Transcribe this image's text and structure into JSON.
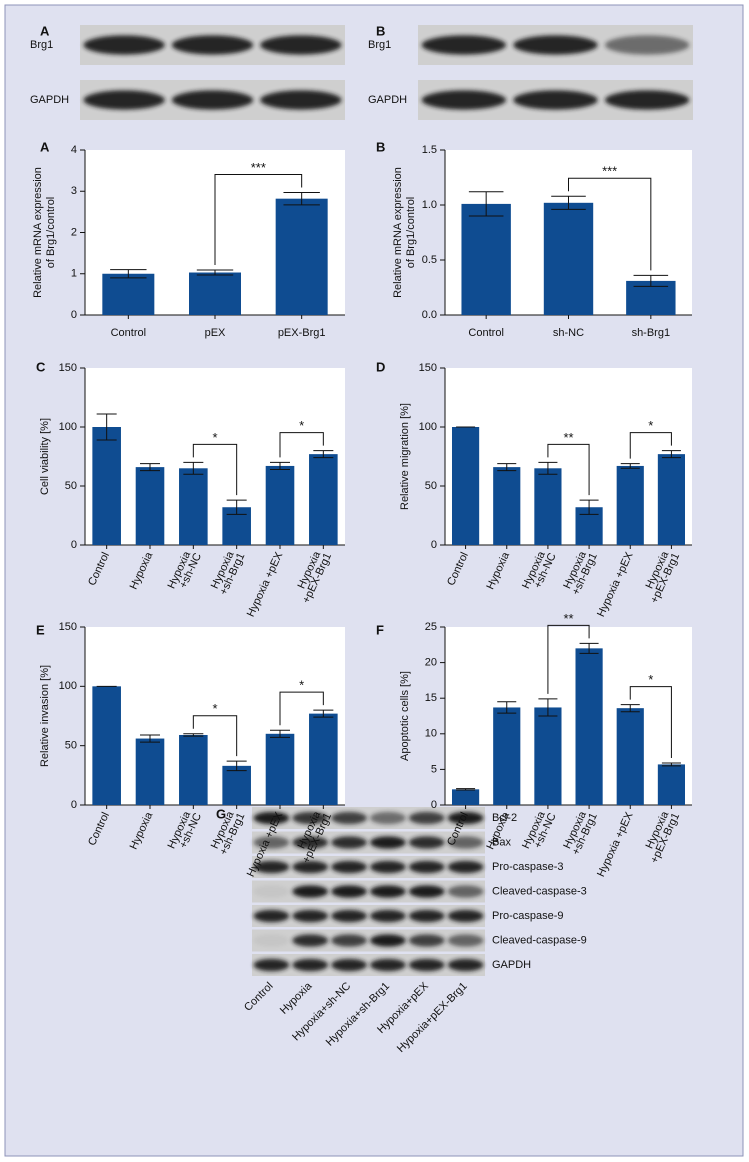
{
  "chart_data": [
    {
      "type": "bar",
      "panel": "A",
      "ylabel": [
        "Relative mRNA expression",
        "of Brg1/control"
      ],
      "categories": [
        [
          "Control"
        ],
        [
          "pEX"
        ],
        [
          "pEX-Brg1"
        ]
      ],
      "values": [
        1.0,
        1.03,
        2.82
      ],
      "errors": [
        0.1,
        0.06,
        0.15
      ],
      "color": "#0f4c91",
      "ylim": [
        0,
        4
      ],
      "yticks": [
        0,
        1,
        2,
        3,
        4
      ],
      "significance": [
        {
          "label": "***",
          "from": 1,
          "to": 2
        }
      ]
    },
    {
      "type": "bar",
      "panel": "B",
      "ylabel": [
        "Relative mRNA expression",
        "of Brg1/control"
      ],
      "categories": [
        [
          "Control"
        ],
        [
          "sh-NC"
        ],
        [
          "sh-Brg1"
        ]
      ],
      "values": [
        1.01,
        1.02,
        0.31
      ],
      "errors": [
        0.11,
        0.06,
        0.05
      ],
      "color": "#0f4c91",
      "ylim": [
        0,
        1.5
      ],
      "yticks": [
        {
          "value": 0,
          "label": "0.0"
        },
        0.5,
        {
          "value": 1,
          "label": "1.0"
        },
        1.5
      ],
      "significance": [
        {
          "label": "***",
          "from": 1,
          "to": 2
        }
      ]
    },
    {
      "type": "bar",
      "panel": "C",
      "ylabel": [
        "Cell viability [%]"
      ],
      "categories": [
        [
          "Control"
        ],
        [
          "Hypoxia"
        ],
        [
          "Hypoxia",
          "+sh-NC"
        ],
        [
          "Hypoxia",
          "+sh-Brg1"
        ],
        [
          "Hypoxia +pEX"
        ],
        [
          "Hypoxia",
          "+pEX-Brg1"
        ]
      ],
      "values": [
        100,
        66,
        65,
        32,
        67,
        77
      ],
      "errors": [
        11,
        3,
        5,
        6,
        3,
        3
      ],
      "color": "#0f4c91",
      "ylim": [
        0,
        150
      ],
      "yticks": [
        0,
        50,
        100,
        150
      ],
      "significance": [
        {
          "label": "*",
          "from": 2,
          "to": 3
        },
        {
          "label": "*",
          "from": 4,
          "to": 5
        }
      ]
    },
    {
      "type": "bar",
      "panel": "D",
      "ylabel": [
        "Relative migration [%]"
      ],
      "categories": [
        [
          "Control"
        ],
        [
          "Hypoxia"
        ],
        [
          "Hypoxia",
          "+sh-NC"
        ],
        [
          "Hypoxia",
          "+sh-Brg1"
        ],
        [
          "Hypoxia +pEX"
        ],
        [
          "Hypoxia",
          "+pEX-Brg1"
        ]
      ],
      "values": [
        100,
        66,
        65,
        32,
        67,
        77
      ],
      "errors": [
        0,
        3,
        5,
        6,
        2,
        3
      ],
      "color": "#0f4c91",
      "ylim": [
        0,
        150
      ],
      "yticks": [
        0,
        50,
        100,
        150
      ],
      "significance": [
        {
          "label": "**",
          "from": 2,
          "to": 3
        },
        {
          "label": "*",
          "from": 4,
          "to": 5
        }
      ]
    },
    {
      "type": "bar",
      "panel": "E",
      "ylabel": [
        "Relative invasion [%]"
      ],
      "categories": [
        [
          "Control"
        ],
        [
          "Hypoxia"
        ],
        [
          "Hypoxia",
          "+sh-NC"
        ],
        [
          "Hypoxia",
          "+sh-Brg1"
        ],
        [
          "Hypoxia +pEX"
        ],
        [
          "Hypoxia",
          "+pEX-Brg1"
        ]
      ],
      "values": [
        100,
        56,
        59,
        33,
        60,
        77
      ],
      "errors": [
        0,
        3,
        1,
        4,
        3,
        3
      ],
      "color": "#0f4c91",
      "ylim": [
        0,
        150
      ],
      "yticks": [
        0,
        50,
        100,
        150
      ],
      "significance": [
        {
          "label": "*",
          "from": 2,
          "to": 3
        },
        {
          "label": "*",
          "from": 4,
          "to": 5
        }
      ]
    },
    {
      "type": "bar",
      "panel": "F",
      "ylabel": [
        "Apoptotic cells [%]"
      ],
      "categories": [
        [
          "Control"
        ],
        [
          "Hypoxia"
        ],
        [
          "Hypoxia",
          "+sh-NC"
        ],
        [
          "Hypoxia",
          "+sh-Brg1"
        ],
        [
          "Hypoxia +pEX"
        ],
        [
          "Hypoxia",
          "+pEX-Brg1"
        ]
      ],
      "values": [
        2.2,
        13.7,
        13.7,
        22,
        13.6,
        5.7
      ],
      "errors": [
        0.1,
        0.8,
        1.2,
        0.7,
        0.5,
        0.2
      ],
      "color": "#0f4c91",
      "ylim": [
        0,
        25
      ],
      "yticks": [
        0,
        5,
        10,
        15,
        20,
        25
      ],
      "significance": [
        {
          "label": "**",
          "from": 2,
          "to": 3
        },
        {
          "label": "*",
          "from": 4,
          "to": 5
        }
      ]
    }
  ],
  "blots": [
    {
      "panel": "A",
      "rows": [
        "Brg1",
        "GAPDH"
      ]
    },
    {
      "panel": "B",
      "rows": [
        "Brg1",
        "GAPDH"
      ]
    },
    {
      "panel": "G",
      "rows": [
        "Bcl-2",
        "Bax",
        "Pro-caspase-3",
        "Cleaved-caspase-3",
        "Pro-caspase-9",
        "Cleaved-caspase-9",
        "GAPDH"
      ],
      "lanes": [
        "Control",
        "Hypoxia",
        "Hypoxia+sh-NC",
        "Hypoxia+sh-Brg1",
        "Hypoxia+pEX",
        "Hypoxia+pEX-Brg1"
      ]
    }
  ]
}
